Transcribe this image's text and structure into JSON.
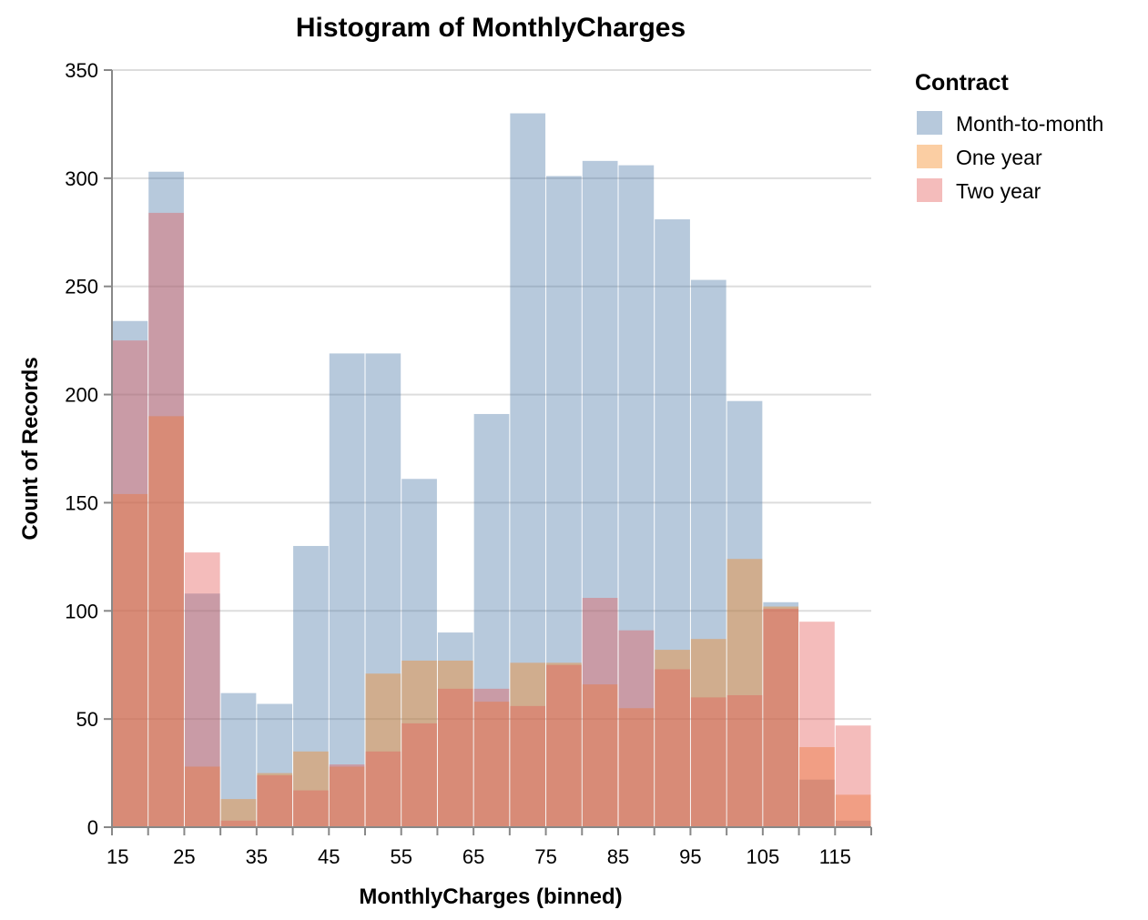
{
  "chart_data": {
    "type": "bar",
    "layout": "overlapping-histogram",
    "title": "Histogram of MonthlyCharges",
    "xlabel": "MonthlyCharges (binned)",
    "ylabel": "Count of Records",
    "xlim": [
      15,
      120
    ],
    "ylim": [
      0,
      350
    ],
    "bin_width": 5,
    "x_ticks": [
      15,
      25,
      35,
      45,
      55,
      65,
      75,
      85,
      95,
      105,
      115
    ],
    "y_ticks": [
      0,
      50,
      100,
      150,
      200,
      250,
      300,
      350
    ],
    "grid": true,
    "legend": {
      "title": "Contract",
      "position": "top-right"
    },
    "bin_starts": [
      15,
      20,
      25,
      30,
      35,
      40,
      45,
      50,
      55,
      60,
      65,
      70,
      75,
      80,
      85,
      90,
      95,
      100,
      105,
      110,
      115
    ],
    "series": [
      {
        "name": "Month-to-month",
        "color": "#4c78a8",
        "values": [
          234,
          303,
          108,
          62,
          57,
          130,
          219,
          219,
          161,
          90,
          191,
          330,
          301,
          308,
          306,
          281,
          253,
          197,
          104,
          22,
          3
        ]
      },
      {
        "name": "One year",
        "color": "#f58518",
        "values": [
          154,
          190,
          28,
          13,
          25,
          35,
          28,
          71,
          77,
          77,
          58,
          76,
          76,
          66,
          55,
          82,
          87,
          124,
          102,
          37,
          15
        ]
      },
      {
        "name": "Two year",
        "color": "#e45756",
        "values": [
          225,
          284,
          127,
          3,
          24,
          17,
          29,
          35,
          48,
          64,
          64,
          56,
          75,
          106,
          91,
          73,
          60,
          61,
          101,
          95,
          47
        ]
      }
    ],
    "opacity": 0.4
  }
}
